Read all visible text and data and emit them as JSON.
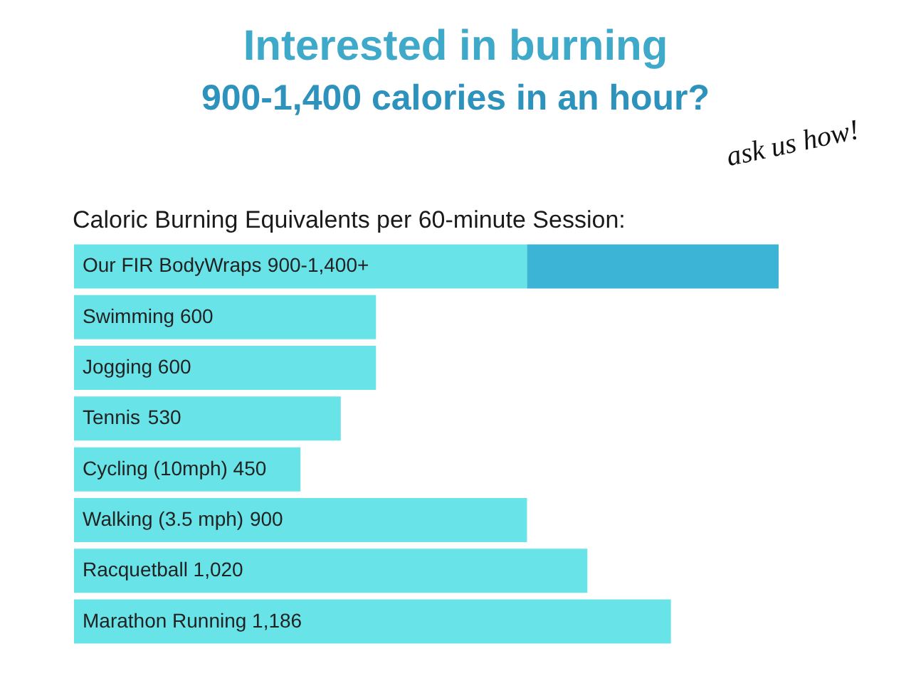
{
  "chart_data": {
    "type": "bar",
    "orientation": "horizontal",
    "stacked": true,
    "title": "Interested in burning\n900-1,400 calories in an hour?",
    "subtitle": "Caloric Burning Equivalents per 60-minute Session:",
    "annotations": [
      "ask us how!"
    ],
    "categories": [
      "Our FIR BodyWraps",
      "Swimming",
      "Jogging",
      "Tennis",
      "Cycling (10mph)",
      "Walking (3.5 mph)",
      "Racquetball",
      "Marathon Running"
    ],
    "series": [
      {
        "color": "#68e4e9",
        "values": [
          900,
          600,
          600,
          530,
          450,
          900,
          1020,
          1186
        ],
        "value_labels": [
          "900-1,400+",
          "600",
          "600",
          "530",
          "450",
          "900",
          "1,020",
          "1,186"
        ]
      },
      {
        "color": "#3bb4d6",
        "values": [
          500,
          null,
          null,
          null,
          null,
          null,
          null,
          null
        ]
      }
    ]
  }
}
